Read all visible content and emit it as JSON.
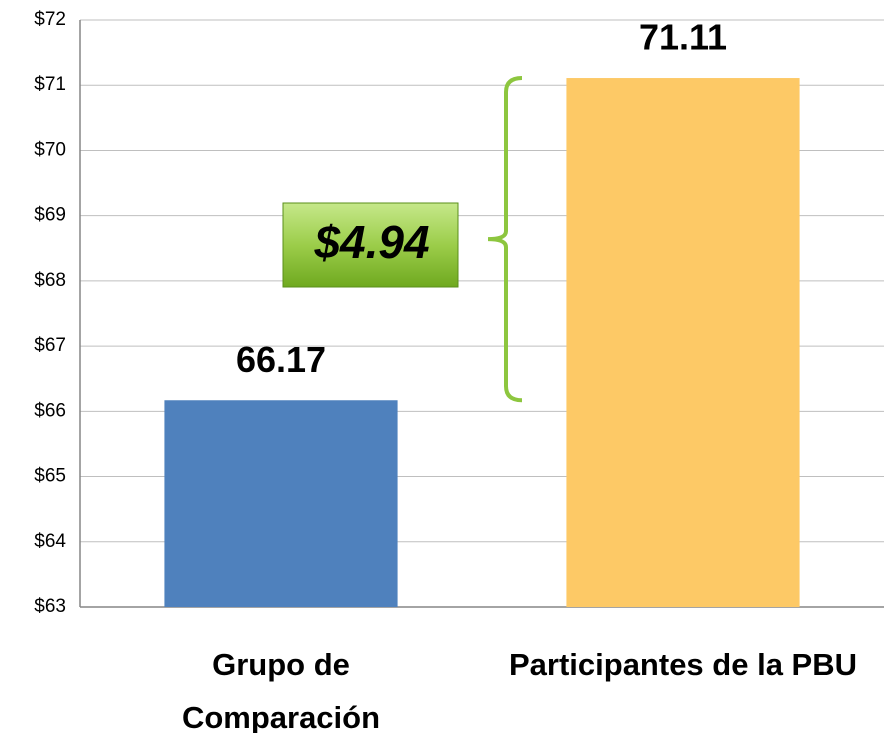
{
  "chart_data": {
    "type": "bar",
    "categories": [
      "Grupo de Comparación",
      "Participantes de la PBU"
    ],
    "values": [
      66.17,
      71.11
    ],
    "colors": [
      "#4f81bd",
      "#fdc966"
    ],
    "ylim": [
      63,
      72
    ],
    "yticks": [
      {
        "value": 63,
        "label": "$63"
      },
      {
        "value": 64,
        "label": "$64"
      },
      {
        "value": 65,
        "label": "$65"
      },
      {
        "value": 66,
        "label": "$66"
      },
      {
        "value": 67,
        "label": "$67"
      },
      {
        "value": 68,
        "label": "$68"
      },
      {
        "value": 69,
        "label": "$69"
      },
      {
        "value": 70,
        "label": "$70"
      },
      {
        "value": 71,
        "label": "$71"
      },
      {
        "value": 72,
        "label": "$72"
      }
    ],
    "grid": true,
    "annotation": "$4.94"
  }
}
